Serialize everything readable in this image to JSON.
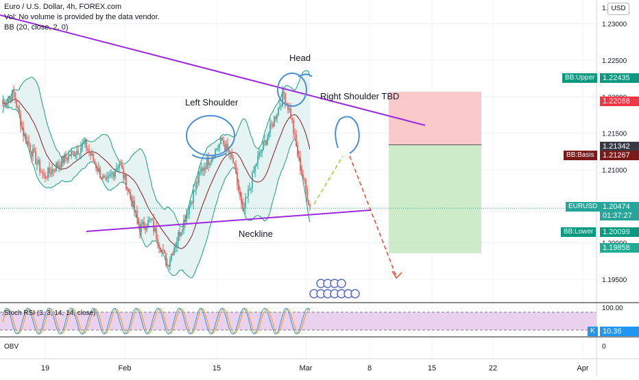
{
  "header": {
    "title": "Euro / U.S. Dollar, 4h, FOREX.com",
    "volume_note": "Vol: No volume is provided by the data vendor.",
    "bb_indicator": "BB (20, close, 2, 0)",
    "currency": "USD"
  },
  "annotations": {
    "head": "Head",
    "left_shoulder": "Left Shoulder",
    "right_shoulder": "Right Shoulder TBD",
    "neckline": "Neckline"
  },
  "price_labels": {
    "bb_upper_tag": "BB:Upper",
    "bb_upper_value": "1.22435",
    "stop_value": "1.22068",
    "entry_value": "1.21342",
    "bb_basis_tag": "BB:Basis",
    "bb_basis_value": "1.21267",
    "symbol_tag": "EURUSD",
    "last_value": "1.20474",
    "countdown": "01:37:27",
    "bb_lower_tag": "BB:Lower",
    "bb_lower_value": "1.20099",
    "target_value": "1.19858",
    "k_tag": "K",
    "k_value": "10.36"
  },
  "subpanes": {
    "stoch_title": "Stoch RSI (3, 3, 14, 14, close)",
    "obv_title": "OBV"
  },
  "colors": {
    "bull": "#26a69a",
    "bear": "#ef5350",
    "bb_fill": "#e0f2f1",
    "bb_band": "#1b9e77",
    "bb_basis": "#8b1a1a",
    "trendline": "#9c27e0",
    "circle": "#4a8fd6",
    "stop_zone": "#f8b4b4",
    "target_zone": "#b8e2b0",
    "stoch_k": "#2196f3",
    "stoch_d": "#ff9800",
    "stoch_band": "#e1bee7"
  },
  "chart_data": {
    "type": "candlestick",
    "symbol": "EURUSD",
    "interval": "4h",
    "x_ticks": [
      "19",
      "Feb",
      "15",
      "Mar",
      "8",
      "15",
      "22",
      "Apr"
    ],
    "y_ticks": [
      "1.23000",
      "1.22500",
      "1.22000",
      "1.21500",
      "1.21000",
      "1.20000",
      "1.19500"
    ],
    "subpane_y_ticks": [
      "100.00",
      "0"
    ],
    "bollinger_params": {
      "length": 20,
      "source": "close",
      "mult": 2,
      "offset": 0
    },
    "stoch_rsi_params": [
      3,
      3,
      14,
      14
    ],
    "levels": {
      "bb_upper": 1.22435,
      "bb_basis": 1.21267,
      "bb_lower": 1.20099,
      "last_price": 1.20474,
      "stop": 1.22068,
      "entry": 1.21342,
      "target": 1.19858
    },
    "stoch_k": 10.36,
    "price_anchors": [
      {
        "x": 0,
        "p": 1.219
      },
      {
        "x": 8,
        "p": 1.2205
      },
      {
        "x": 15,
        "p": 1.215
      },
      {
        "x": 30,
        "p": 1.209
      },
      {
        "x": 45,
        "p": 1.2115
      },
      {
        "x": 60,
        "p": 1.2135
      },
      {
        "x": 75,
        "p": 1.208
      },
      {
        "x": 85,
        "p": 1.211
      },
      {
        "x": 100,
        "p": 1.202
      },
      {
        "x": 108,
        "p": 1.203
      },
      {
        "x": 120,
        "p": 1.197
      },
      {
        "x": 132,
        "p": 1.203
      },
      {
        "x": 145,
        "p": 1.21
      },
      {
        "x": 160,
        "p": 1.214
      },
      {
        "x": 168,
        "p": 1.211
      },
      {
        "x": 175,
        "p": 1.204
      },
      {
        "x": 185,
        "p": 1.211
      },
      {
        "x": 195,
        "p": 1.2155
      },
      {
        "x": 205,
        "p": 1.2205
      },
      {
        "x": 210,
        "p": 1.2175
      },
      {
        "x": 215,
        "p": 1.212
      },
      {
        "x": 220,
        "p": 1.208
      },
      {
        "x": 224,
        "p": 1.205
      }
    ]
  }
}
